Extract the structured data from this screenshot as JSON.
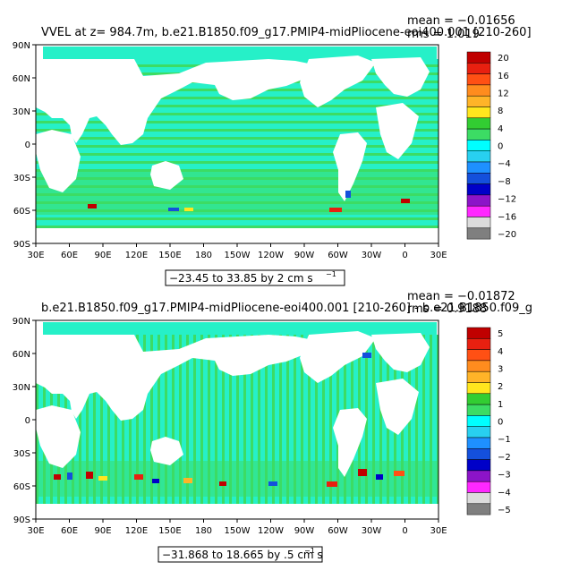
{
  "chart_data": [
    {
      "type": "heatmap",
      "title": "VVEL at z= 984.7m, b.e21.B1850.f09_g17.PMIP4-midPliocene-eoi400.001 [210-260]",
      "stats": {
        "mean": "mean = −0.01656",
        "rms": "rms = 1.019"
      },
      "range_label": "−23.45 to 33.85 by 2 cm s",
      "range_unit_sup": "−1",
      "x_ticks": [
        "30E",
        "60E",
        "90E",
        "120E",
        "150E",
        "180",
        "150W",
        "120W",
        "90W",
        "60W",
        "30W",
        "0",
        "30E"
      ],
      "y_ticks": [
        "90N",
        "60N",
        "30N",
        "0",
        "30S",
        "60S",
        "90S"
      ],
      "colorbar": {
        "labels": [
          "20",
          "16",
          "12",
          "8",
          "4",
          "0",
          "−4",
          "−8",
          "−12",
          "−16",
          "−20"
        ],
        "colors": [
          "#c00000",
          "#e82010",
          "#ff5014",
          "#ff8c1e",
          "#ffb428",
          "#ffe61e",
          "#32cd32",
          "#3cdc64",
          "#00ffff",
          "#28d0f0",
          "#1e90ff",
          "#1450dc",
          "#0000c8",
          "#8c14c8",
          "#ff28ff",
          "#dcdcdc",
          "#7f7f7f"
        ]
      }
    },
    {
      "type": "heatmap",
      "title": "b.e21.B1850.f09_g17.PMIP4-midPliocene-eoi400.001 [210-260] - b.e21.B1850.f09_g",
      "stats": {
        "mean": "mean = −0.01872",
        "rms": "rms = 0.9188"
      },
      "range_label": "−31.868 to 18.665 by .5 cm s",
      "range_unit_sup": "−1",
      "x_ticks": [
        "30E",
        "60E",
        "90E",
        "120E",
        "150E",
        "180",
        "150W",
        "120W",
        "90W",
        "60W",
        "30W",
        "0",
        "30E"
      ],
      "y_ticks": [
        "90N",
        "60N",
        "30N",
        "0",
        "30S",
        "60S",
        "90S"
      ],
      "colorbar": {
        "labels": [
          "5",
          "4",
          "3",
          "2",
          "1",
          "0",
          "−1",
          "−2",
          "−3",
          "−4",
          "−5"
        ],
        "colors": [
          "#c00000",
          "#e82010",
          "#ff5014",
          "#ff8c1e",
          "#ffb428",
          "#ffe61e",
          "#32cd32",
          "#3cdc64",
          "#00ffff",
          "#28d0f0",
          "#1e90ff",
          "#1450dc",
          "#0000c8",
          "#8c14c8",
          "#ff28ff",
          "#dcdcdc",
          "#7f7f7f"
        ]
      }
    }
  ]
}
